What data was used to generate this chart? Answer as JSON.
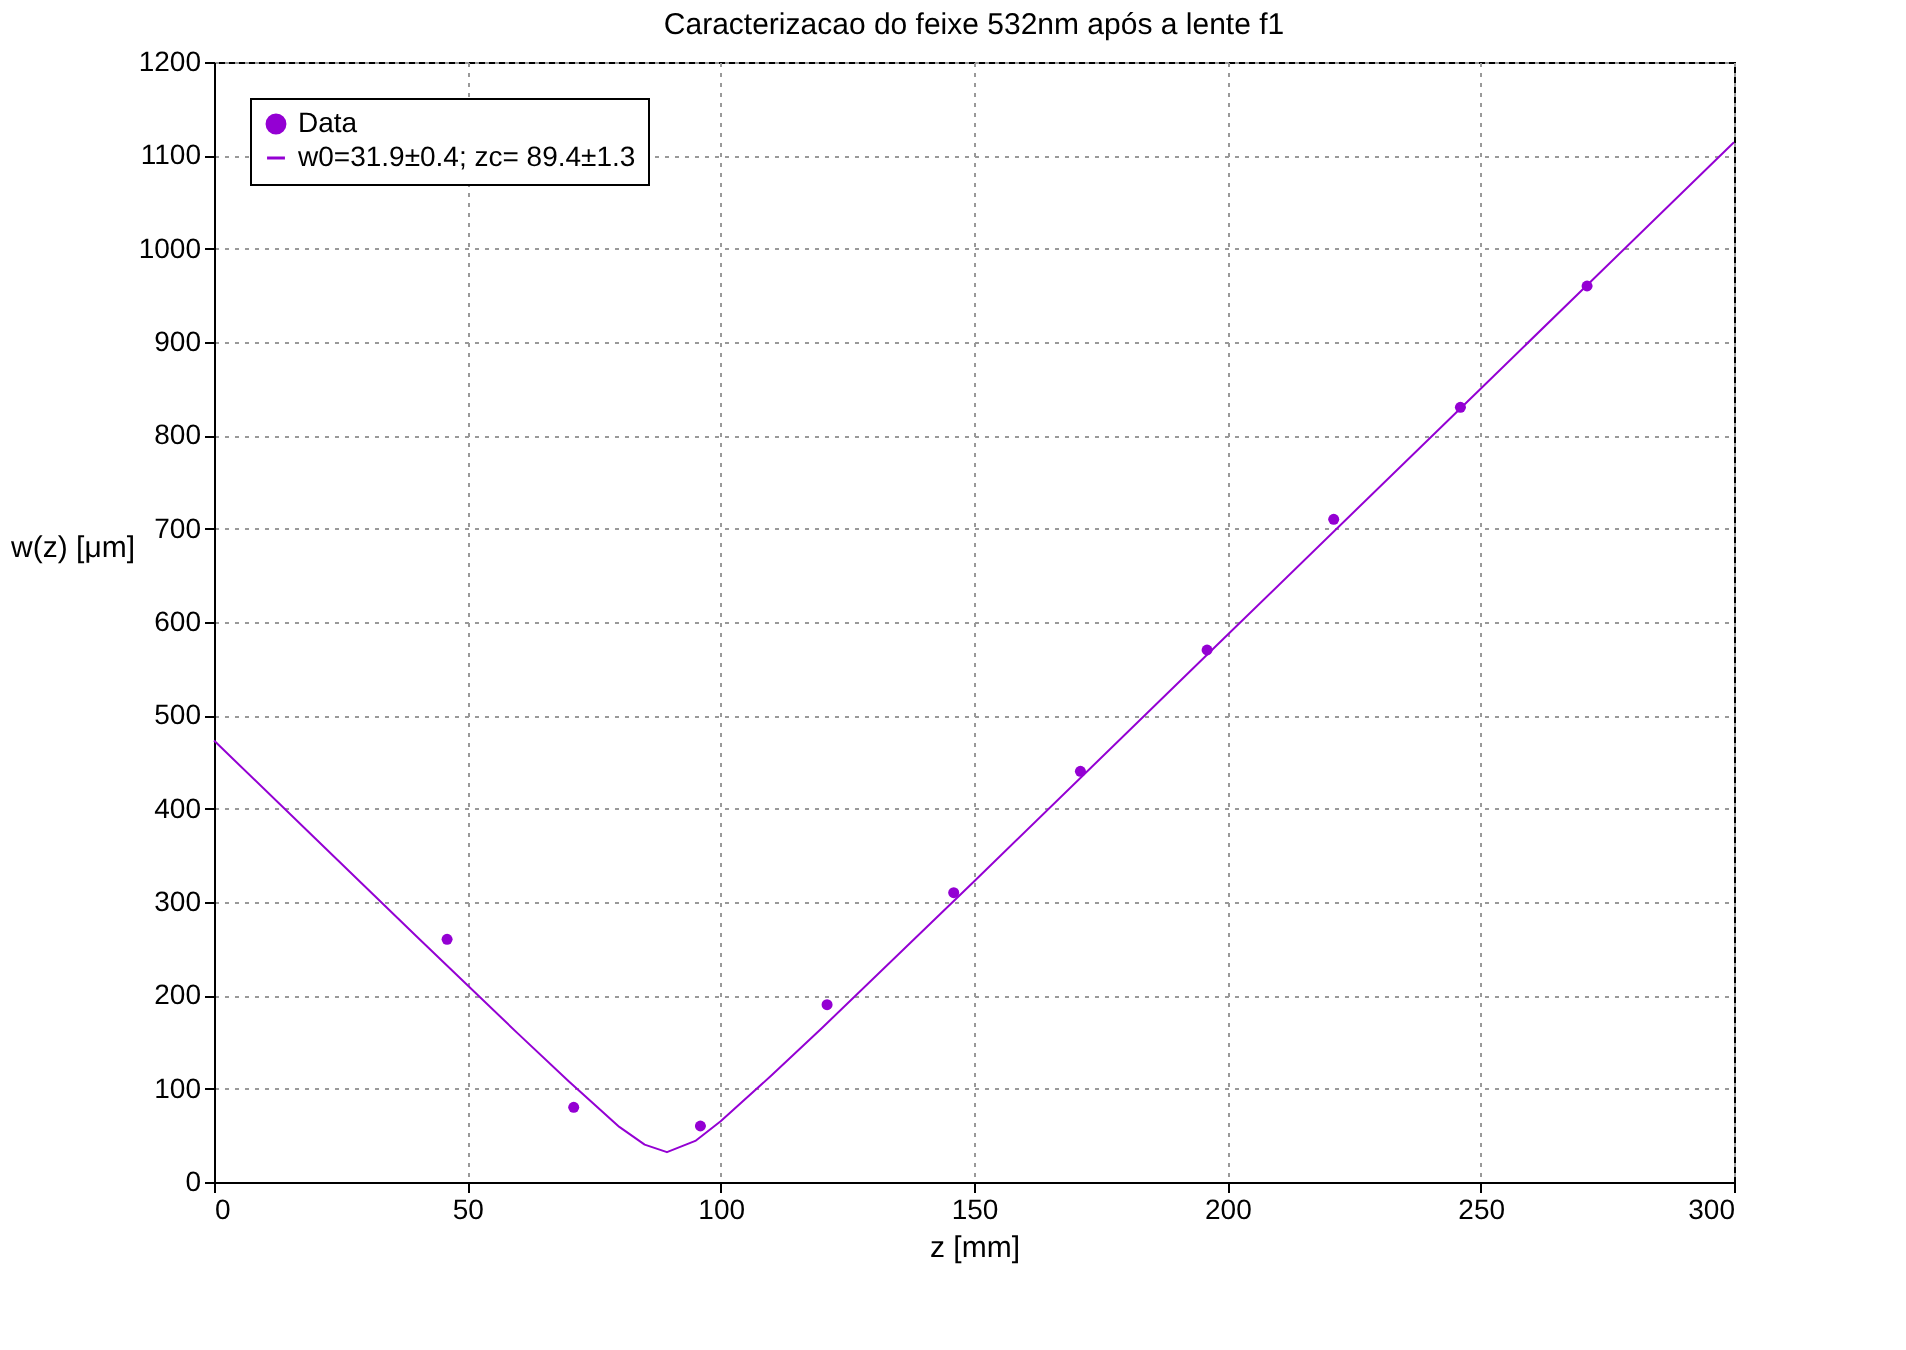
{
  "chart_data": {
    "type": "scatter",
    "title": "Caracterizacao do feixe 532nm após a lente f1",
    "xlabel": "z [mm]",
    "ylabel": "w(z) [μm]",
    "xlim": [
      0,
      300
    ],
    "xticks": [
      0,
      50,
      100,
      150,
      200,
      250,
      300
    ],
    "ylim": [
      0,
      1200
    ],
    "yticks": [
      0,
      100,
      200,
      300,
      400,
      500,
      600,
      700,
      800,
      900,
      1000,
      1100,
      1200
    ],
    "grid": true,
    "legend": "top left",
    "series": [
      {
        "name": "Data",
        "type": "scatter",
        "marker": "circle",
        "color": "#9400d3",
        "x": [
          46,
          71,
          96,
          121,
          146,
          171,
          196,
          221,
          246,
          271
        ],
        "values": [
          260,
          80,
          60,
          190,
          310,
          440,
          570,
          710,
          830,
          960
        ],
        "xerrors": [
          1,
          1,
          1,
          1,
          1,
          1,
          1,
          1,
          1,
          1
        ]
      },
      {
        "name": "w0=31.9±0.4; zc= 89.4±1.3",
        "type": "line",
        "marker": "none",
        "color": "#9400d3",
        "x": [
          0,
          20,
          40,
          60,
          70,
          80,
          85,
          89.4,
          95,
          100,
          110,
          120,
          150,
          200,
          250,
          300
        ],
        "values": [
          473,
          368,
          263,
          159,
          108,
          59,
          40,
          32,
          44,
          65,
          114,
          165,
          322,
          586,
          850,
          1114
        ]
      }
    ]
  }
}
